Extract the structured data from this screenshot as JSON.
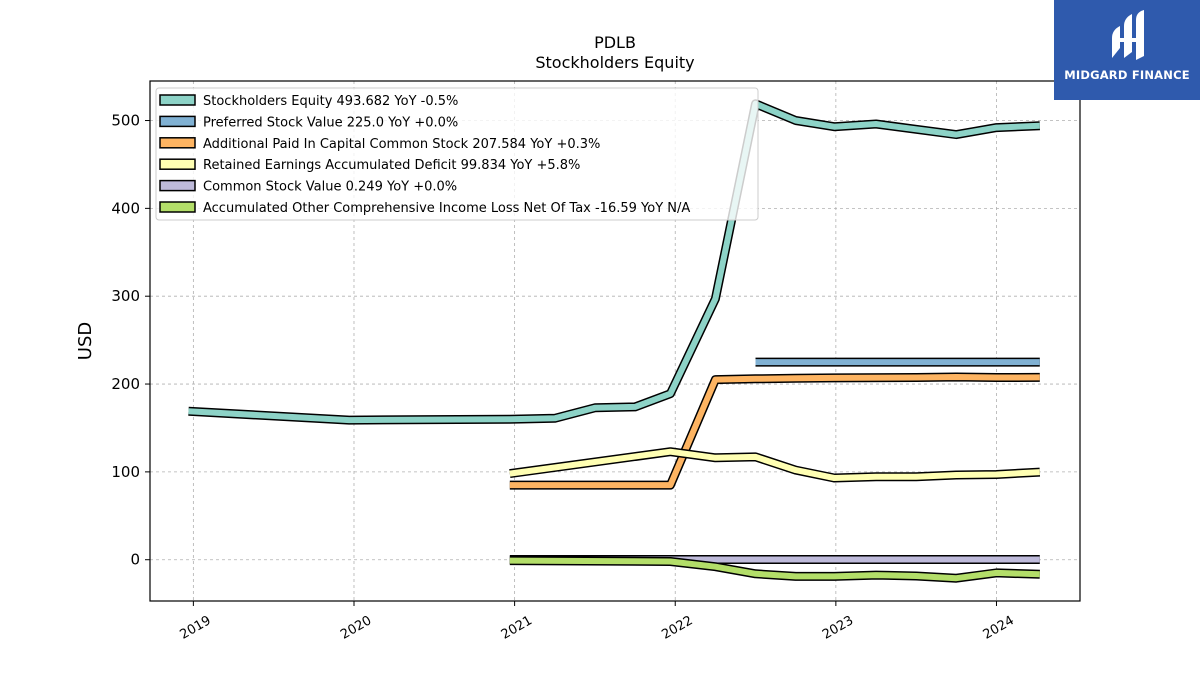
{
  "brand": {
    "name": "MIDGARD FINANCE"
  },
  "chart_data": {
    "type": "line",
    "title": "PDLB",
    "subtitle": "Stockholders  Equity",
    "xlabel": "",
    "ylabel": "USD",
    "xlim": [
      2018.73,
      2024.52
    ],
    "ylim": [
      -47,
      545
    ],
    "yticks": [
      0,
      100,
      200,
      300,
      400,
      500
    ],
    "xticks": [
      "2019",
      "2020",
      "2021",
      "2022",
      "2023",
      "2024"
    ],
    "grid": true,
    "legend_position": "top-left",
    "series": [
      {
        "name": "Stockholders Equity  493.682 YoY -0.5%",
        "color": "#8dd3c7",
        "points": [
          [
            2018.97,
            169
          ],
          [
            2019.97,
            159
          ],
          [
            2020.97,
            160
          ],
          [
            2021.25,
            161
          ],
          [
            2021.5,
            173
          ],
          [
            2021.75,
            174
          ],
          [
            2021.97,
            189
          ],
          [
            2022.25,
            297
          ],
          [
            2022.5,
            519
          ],
          [
            2022.75,
            500
          ],
          [
            2022.99,
            493
          ],
          [
            2023.25,
            496
          ],
          [
            2023.5,
            490
          ],
          [
            2023.75,
            484
          ],
          [
            2024.0,
            492
          ],
          [
            2024.27,
            494
          ]
        ]
      },
      {
        "name": "Preferred Stock Value  225.0 YoY +0.0%",
        "color": "#80b1d3",
        "points": [
          [
            2022.5,
            225
          ],
          [
            2024.27,
            225
          ]
        ]
      },
      {
        "name": "Additional Paid In Capital Common Stock  207.584 YoY +0.3%",
        "color": "#fdb462",
        "points": [
          [
            2020.97,
            85
          ],
          [
            2021.97,
            85
          ],
          [
            2022.25,
            205
          ],
          [
            2022.5,
            206
          ],
          [
            2022.75,
            206.5
          ],
          [
            2022.99,
            207
          ],
          [
            2023.5,
            207.5
          ],
          [
            2023.75,
            208
          ],
          [
            2024.0,
            207.5
          ],
          [
            2024.27,
            207.6
          ]
        ]
      },
      {
        "name": "Retained Earnings Accumulated Deficit  99.834 YoY +5.8%",
        "color": "#ffffb3",
        "points": [
          [
            2020.97,
            98
          ],
          [
            2021.97,
            123
          ],
          [
            2022.25,
            116
          ],
          [
            2022.5,
            117
          ],
          [
            2022.75,
            102
          ],
          [
            2022.99,
            93
          ],
          [
            2023.25,
            94.5
          ],
          [
            2023.5,
            94.5
          ],
          [
            2023.75,
            96.5
          ],
          [
            2024.0,
            97
          ],
          [
            2024.27,
            99.8
          ]
        ]
      },
      {
        "name": "Common Stock Value  0.249 YoY +0.0%",
        "color": "#bebada",
        "points": [
          [
            2020.97,
            0.2
          ],
          [
            2024.27,
            0.249
          ]
        ]
      },
      {
        "name": "Accumulated Other Comprehensive Income Loss Net Of Tax  -16.59 YoY N/A",
        "color": "#b3de69",
        "points": [
          [
            2020.97,
            -1
          ],
          [
            2021.97,
            -2
          ],
          [
            2022.25,
            -8
          ],
          [
            2022.5,
            -16
          ],
          [
            2022.75,
            -19
          ],
          [
            2022.99,
            -19
          ],
          [
            2023.25,
            -17.5
          ],
          [
            2023.5,
            -18.5
          ],
          [
            2023.75,
            -21
          ],
          [
            2024.0,
            -15
          ],
          [
            2024.27,
            -16.59
          ]
        ]
      }
    ]
  }
}
